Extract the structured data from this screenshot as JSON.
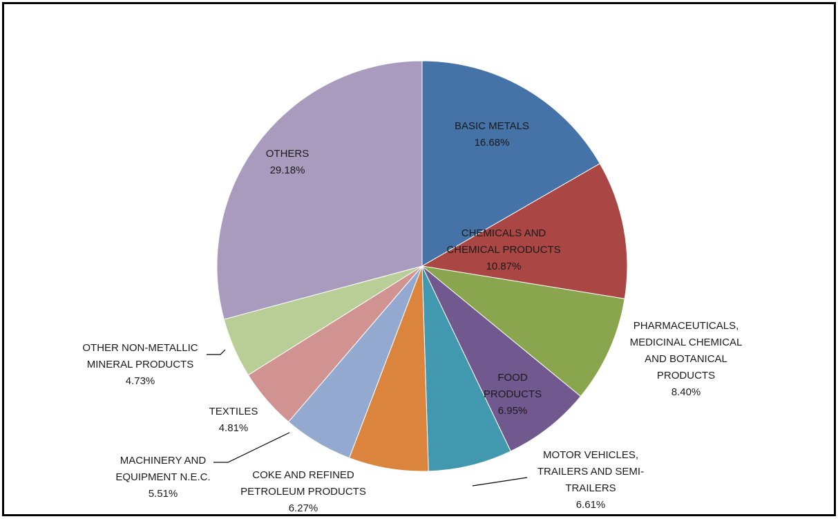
{
  "chart_data": {
    "type": "pie",
    "start_angle": "12 o'clock",
    "direction": "clockwise",
    "legend": "none",
    "slices": [
      {
        "label": [
          "BASIC METALS"
        ],
        "value": 16.68,
        "value_label": "16.68%",
        "color": "#4572A7"
      },
      {
        "label": [
          "CHEMICALS AND",
          "CHEMICAL PRODUCTS"
        ],
        "value": 10.87,
        "value_label": "10.87%",
        "color": "#AA4643"
      },
      {
        "label": [
          "PHARMACEUTICALS,",
          "MEDICINAL CHEMICAL",
          "AND BOTANICAL",
          "PRODUCTS"
        ],
        "value": 8.4,
        "value_label": "8.40%",
        "color": "#89A54E"
      },
      {
        "label": [
          "FOOD",
          "PRODUCTS"
        ],
        "value": 6.95,
        "value_label": "6.95%",
        "color": "#71588F"
      },
      {
        "label": [
          "MOTOR VEHICLES,",
          "TRAILERS AND SEMI-",
          "TRAILERS"
        ],
        "value": 6.61,
        "value_label": "6.61%",
        "color": "#4198AF"
      },
      {
        "label": [
          "COKE AND REFINED",
          "PETROLEUM PRODUCTS"
        ],
        "value": 6.27,
        "value_label": "6.27%",
        "color": "#DB843D"
      },
      {
        "label": [
          "MACHINERY AND",
          "EQUIPMENT N.E.C."
        ],
        "value": 5.51,
        "value_label": "5.51%",
        "color": "#93A9CF"
      },
      {
        "label": [
          "TEXTILES"
        ],
        "value": 4.81,
        "value_label": "4.81%",
        "color": "#D19392"
      },
      {
        "label": [
          "OTHER NON-METALLIC",
          "MINERAL PRODUCTS"
        ],
        "value": 4.73,
        "value_label": "4.73%",
        "color": "#B9CD96"
      },
      {
        "label": [
          "OTHERS"
        ],
        "value": 29.18,
        "value_label": "29.18%",
        "color": "#A99BBD"
      }
    ]
  }
}
